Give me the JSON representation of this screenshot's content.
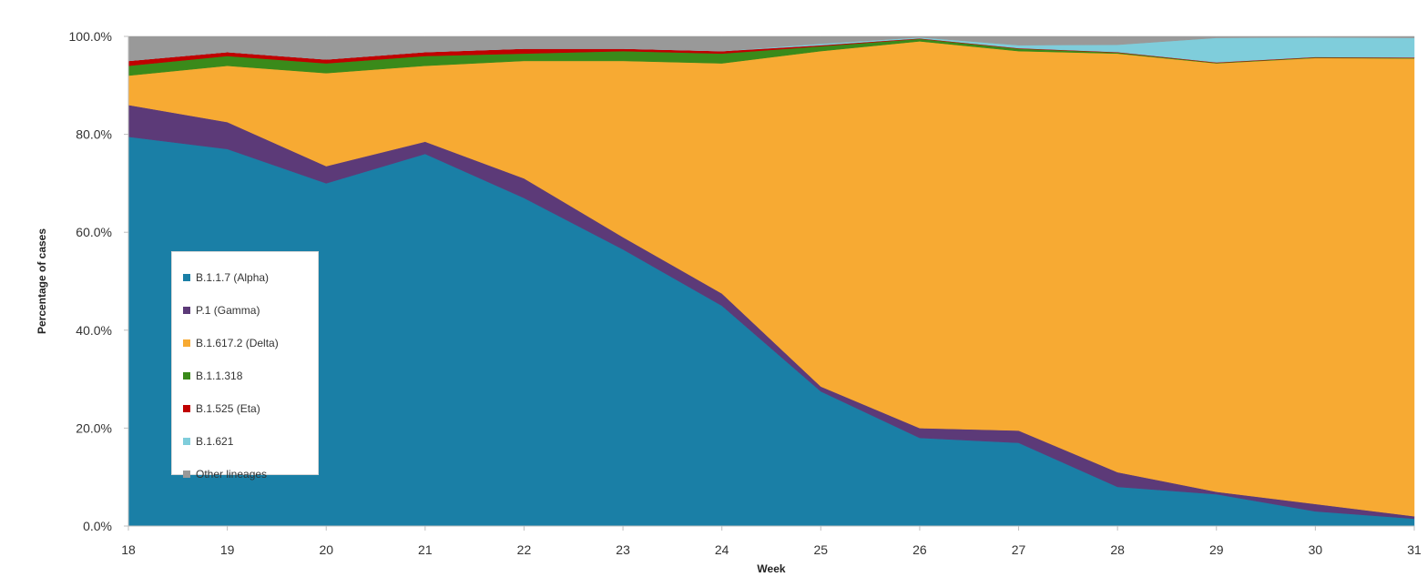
{
  "chart_data": {
    "type": "area",
    "stacked": true,
    "xlabel": "Week",
    "ylabel": "Percentage of cases",
    "x": [
      18,
      19,
      20,
      21,
      22,
      23,
      24,
      25,
      26,
      27,
      28,
      29,
      30,
      31
    ],
    "ylim": [
      0,
      100
    ],
    "yticks": [
      0,
      20,
      40,
      60,
      80,
      100
    ],
    "ytick_labels": [
      "0.0%",
      "20.0%",
      "40.0%",
      "60.0%",
      "80.0%",
      "100.0%"
    ],
    "grid": false,
    "legend_position": "left, inside plot",
    "series": [
      {
        "name": "B.1.1.7 (Alpha)",
        "color": "#1a7fa6",
        "values": [
          79.5,
          77.0,
          70.0,
          76.0,
          67.0,
          56.5,
          45.0,
          27.5,
          18.0,
          17.0,
          8.0,
          6.5,
          3.0,
          1.5
        ]
      },
      {
        "name": "P.1 (Gamma)",
        "color": "#5c3a78",
        "values": [
          6.5,
          5.5,
          3.5,
          2.5,
          4.0,
          2.5,
          2.5,
          1.0,
          2.0,
          2.5,
          3.0,
          0.5,
          1.5,
          0.5
        ]
      },
      {
        "name": "B.1.617.2 (Delta)",
        "color": "#f7aa33",
        "values": [
          6.0,
          11.5,
          19.0,
          15.5,
          24.0,
          36.0,
          47.0,
          68.5,
          79.0,
          77.5,
          85.5,
          87.5,
          91.0,
          93.5
        ]
      },
      {
        "name": "B.1.1.318",
        "color": "#3a8a1a",
        "values": [
          2.0,
          2.0,
          2.0,
          2.0,
          1.5,
          2.0,
          2.0,
          1.0,
          0.5,
          0.5,
          0.2,
          0.1,
          0.1,
          0.1
        ]
      },
      {
        "name": "B.1.525 (Eta)",
        "color": "#c00000",
        "values": [
          1.0,
          0.8,
          0.8,
          0.8,
          1.0,
          0.5,
          0.5,
          0.2,
          0.1,
          0.1,
          0.1,
          0.1,
          0.1,
          0.1
        ]
      },
      {
        "name": "B.1.621",
        "color": "#7fcddb",
        "values": [
          0.0,
          0.0,
          0.0,
          0.0,
          0.0,
          0.0,
          0.0,
          0.3,
          0.2,
          0.6,
          1.5,
          5.0,
          4.0,
          4.0
        ]
      },
      {
        "name": "Other lineages",
        "color": "#999999",
        "values": [
          5.0,
          3.2,
          4.7,
          3.2,
          2.5,
          2.5,
          3.0,
          1.5,
          0.2,
          1.8,
          1.7,
          0.3,
          0.2,
          0.3
        ]
      }
    ]
  }
}
